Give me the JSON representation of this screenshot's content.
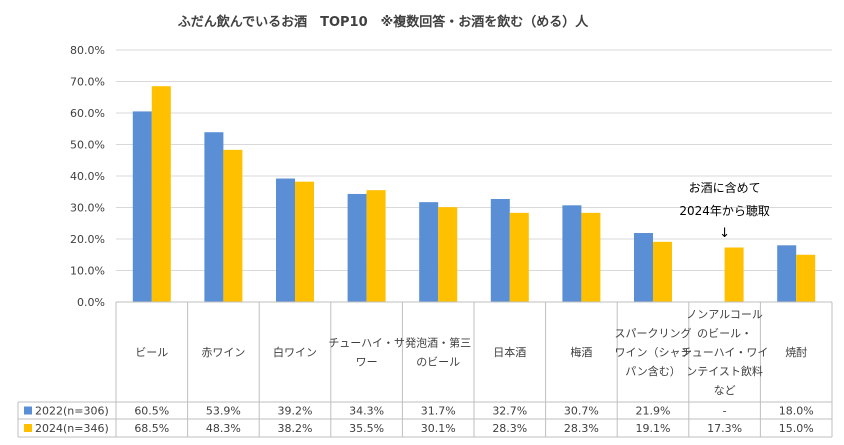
{
  "chart_data": {
    "type": "bar",
    "title": "ふだん飲んでいるお酒　TOP10　※複数回答・お酒を飲む（める）人",
    "ylim": [
      0,
      80
    ],
    "y_ticks": [
      "0.0%",
      "10.0%",
      "20.0%",
      "30.0%",
      "40.0%",
      "50.0%",
      "60.0%",
      "70.0%",
      "80.0%"
    ],
    "grid": true,
    "categories": [
      [
        "ビール"
      ],
      [
        "赤ワイン"
      ],
      [
        "白ワイン"
      ],
      [
        "チューハイ・サ",
        "ワー"
      ],
      [
        "発泡酒・第三",
        "のビール"
      ],
      [
        "日本酒"
      ],
      [
        "梅酒"
      ],
      [
        "スパークリング",
        "ワイン（シャン",
        "パン含む）"
      ],
      [
        "ノンアルコール",
        "のビール・",
        "チューハイ・ワイ",
        "ンテイスト飲料",
        "など"
      ],
      [
        "焼酎"
      ]
    ],
    "series": [
      {
        "name": "2022(n=306)",
        "color": "#5B8FD5",
        "values": [
          60.5,
          53.9,
          39.2,
          34.3,
          31.7,
          32.7,
          30.7,
          21.9,
          null,
          18.0
        ],
        "labels": [
          "60.5%",
          "53.9%",
          "39.2%",
          "34.3%",
          "31.7%",
          "32.7%",
          "30.7%",
          "21.9%",
          "-",
          "18.0%"
        ]
      },
      {
        "name": "2024(n=346)",
        "color": "#FFC000",
        "values": [
          68.5,
          48.3,
          38.2,
          35.5,
          30.1,
          28.3,
          28.3,
          19.1,
          17.3,
          15.0
        ],
        "labels": [
          "68.5%",
          "48.3%",
          "38.2%",
          "35.5%",
          "30.1%",
          "28.3%",
          "28.3%",
          "19.1%",
          "17.3%",
          "15.0%"
        ]
      }
    ],
    "annotation": {
      "lines": [
        "お酒に含めて",
        "2024年から聴取"
      ],
      "arrow": "↓",
      "category_index": 8
    }
  }
}
